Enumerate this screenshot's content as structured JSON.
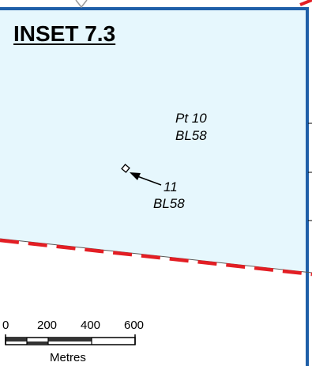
{
  "inset": {
    "title": "INSET 7.3"
  },
  "parcel": {
    "label_line1": "Pt 10",
    "label_line2": "BL58"
  },
  "point": {
    "label_line1": "11",
    "label_line2": "BL58"
  },
  "scale_bar": {
    "ticks": [
      "0",
      "200",
      "400",
      "600"
    ],
    "unit": "Metres"
  },
  "colors": {
    "parcel_fill": "#e6f7fd",
    "boundary_blue": "#1f5fa8",
    "boundary_red": "#e31e24"
  }
}
